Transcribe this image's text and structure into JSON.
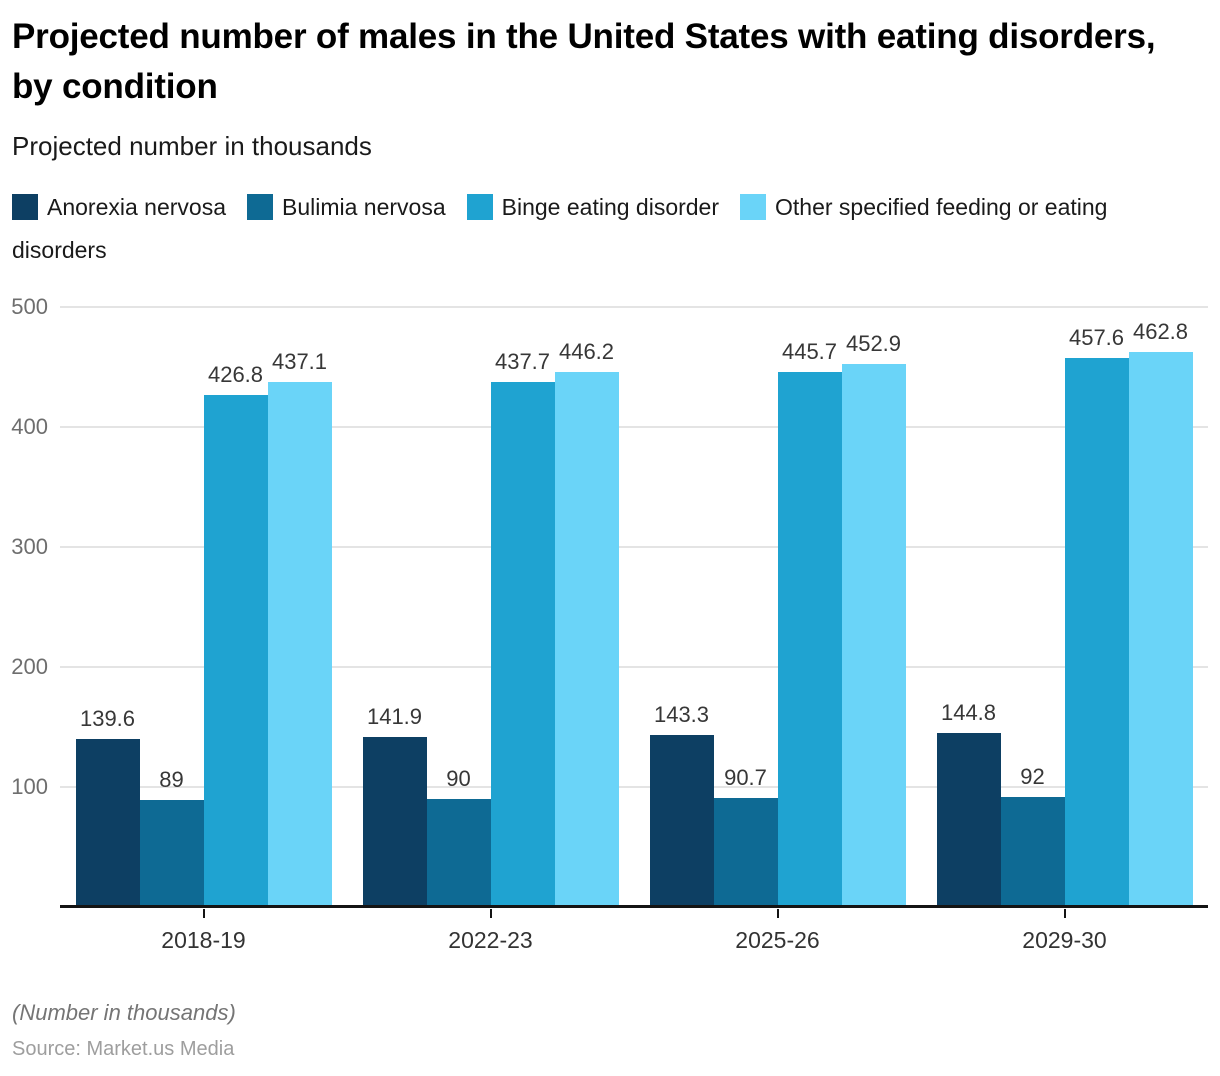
{
  "header": {
    "title": "Projected number of males in the United States with eating disorders, by condition",
    "subtitle": "Projected number in thousands"
  },
  "legend": [
    {
      "label": "Anorexia nervosa",
      "color": "#0d3f63",
      "icon": "legend-swatch-square"
    },
    {
      "label": "Bulimia nervosa",
      "color": "#0e6a94",
      "icon": "legend-swatch-square"
    },
    {
      "label": "Binge eating disorder",
      "color": "#1fa3d1",
      "icon": "legend-swatch-square"
    },
    {
      "label": "Other specified feeding or eating disorders",
      "color": "#6ad4f8",
      "icon": "legend-swatch-square"
    }
  ],
  "chart_data": {
    "type": "bar",
    "title": "Projected number of males in the United States with eating disorders, by condition",
    "subtitle": "Projected number in thousands",
    "xlabel": "",
    "ylabel": "Projected number in thousands",
    "categories": [
      "2018-19",
      "2022-23",
      "2025-26",
      "2029-30"
    ],
    "series": [
      {
        "name": "Anorexia nervosa",
        "color": "#0d3f63",
        "values": [
          139.6,
          141.9,
          143.3,
          144.8
        ]
      },
      {
        "name": "Bulimia nervosa",
        "color": "#0e6a94",
        "values": [
          89,
          90,
          90.7,
          92
        ]
      },
      {
        "name": "Binge eating disorder",
        "color": "#1fa3d1",
        "values": [
          426.8,
          437.7,
          445.7,
          457.6
        ]
      },
      {
        "name": "Other specified feeding or eating disorders",
        "color": "#6ad4f8",
        "values": [
          437.1,
          446.2,
          452.9,
          462.8
        ]
      }
    ],
    "ylim": [
      0,
      500
    ],
    "yticks": [
      100,
      200,
      300,
      400,
      500
    ],
    "grid": true,
    "legend_position": "top",
    "value_labels": true
  },
  "footer": {
    "note": "(Number in thousands)",
    "source": "Source: Market.us Media"
  }
}
